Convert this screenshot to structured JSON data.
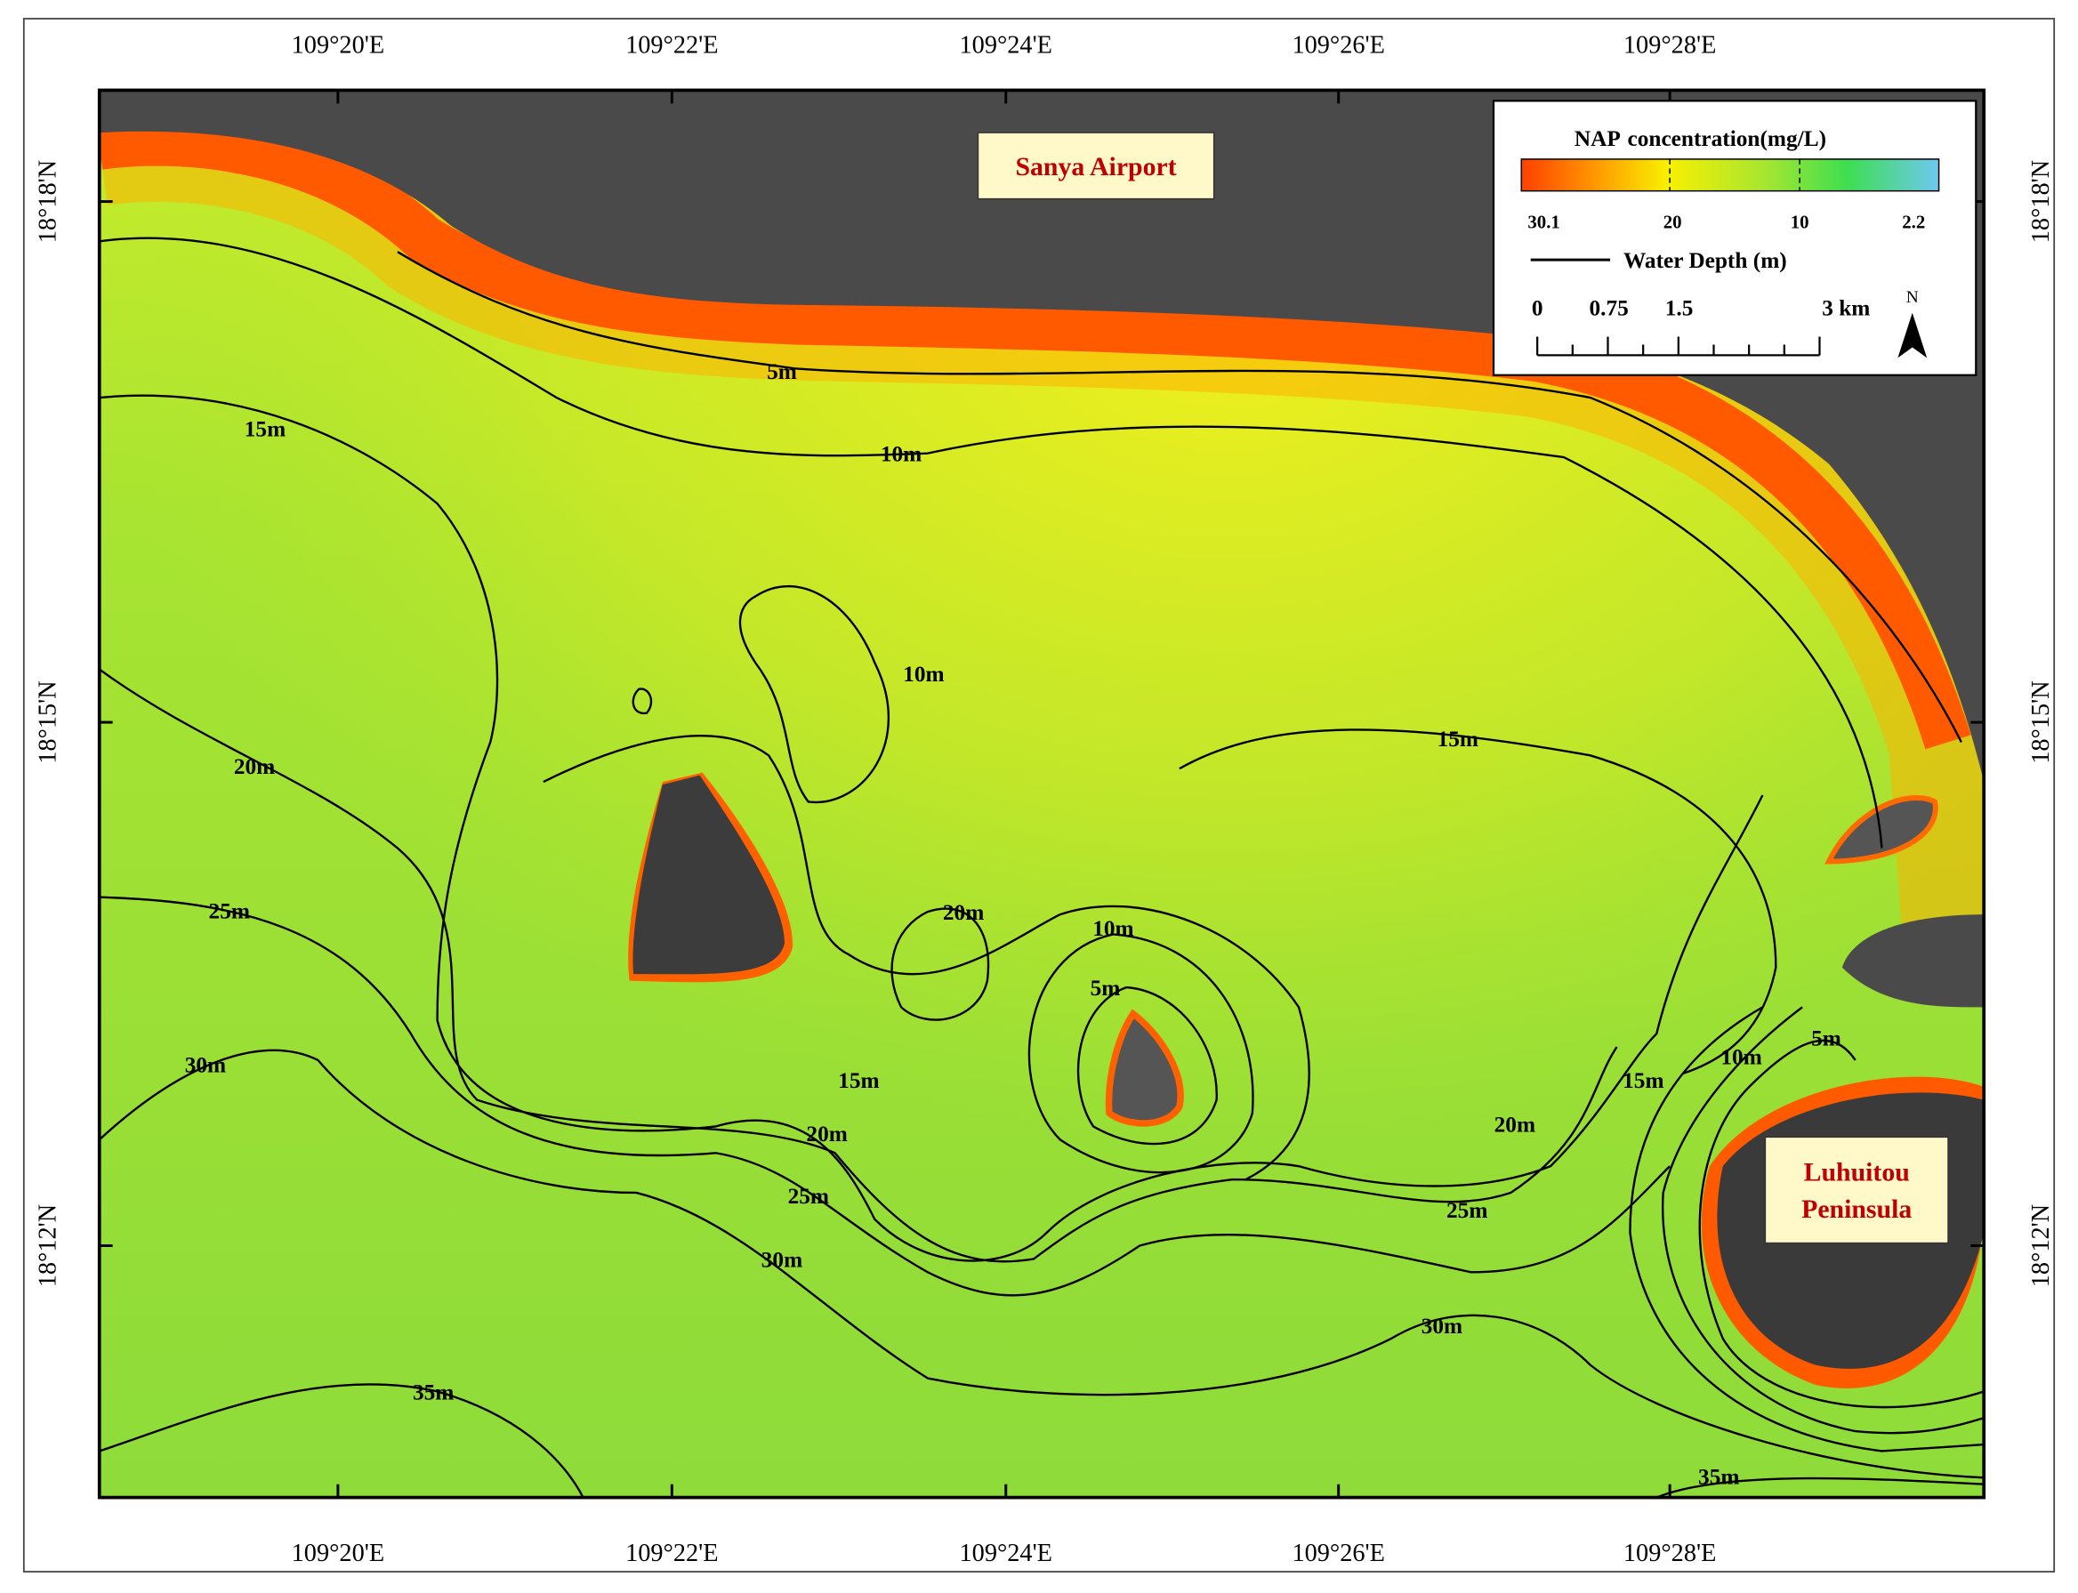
{
  "longitude_labels_top": [
    "109°20'E",
    "109°22'E",
    "109°24'E",
    "109°26'E",
    "109°28'E"
  ],
  "longitude_labels_bottom": [
    "109°20'E",
    "109°22'E",
    "109°24'E",
    "109°26'E",
    "109°28'E"
  ],
  "latitude_labels_left": [
    "18°18'N",
    "18°15'N",
    "18°12'N"
  ],
  "latitude_labels_right": [
    "18°18'N",
    "18°15'N",
    "18°12'N"
  ],
  "legend": {
    "title_prefix": "NAP",
    "title": "concentration(mg/L)",
    "colorbar_ticks": [
      "30.1",
      "20",
      "10",
      "2.2"
    ],
    "depth_label": "Water Depth (m)",
    "scale_labels": [
      "0",
      "0.75",
      "1.5",
      "3 km"
    ],
    "north": "N"
  },
  "places": {
    "airport": "Sanya Airport",
    "peninsula": [
      "Luhuitou",
      "Peninsula"
    ]
  },
  "contour_labels": [
    "5m",
    "15m",
    "10m",
    "10m",
    "15m",
    "20m",
    "25m",
    "20m",
    "10m",
    "5m",
    "30m",
    "15m",
    "15m",
    "10m",
    "5m",
    "20m",
    "20m",
    "25m",
    "25m",
    "30m",
    "30m",
    "35m",
    "35m"
  ]
}
